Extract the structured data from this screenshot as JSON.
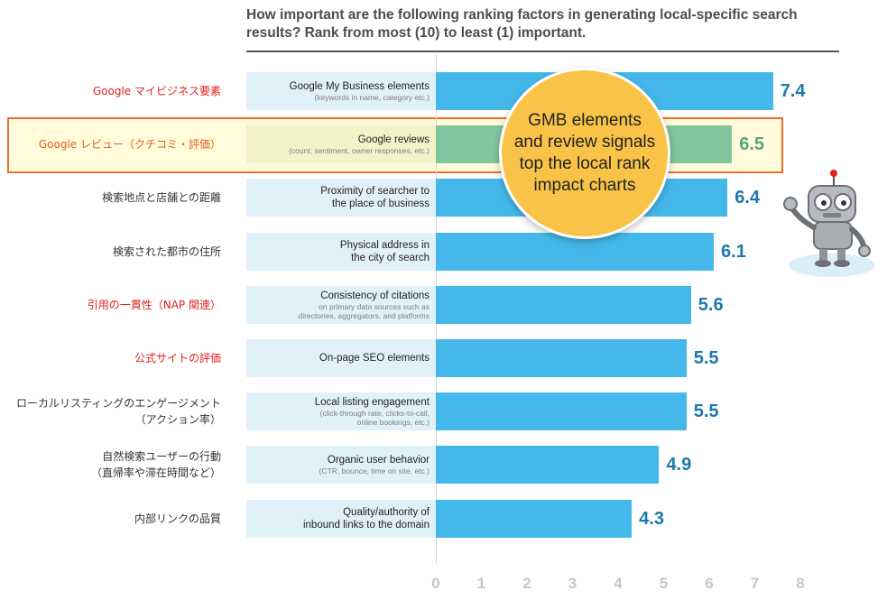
{
  "title": "How important are the following ranking factors in generating local-specific search results? Rank from most (10) to least (1) important.",
  "callout": "GMB elements and review signals top the local rank impact charts",
  "chart_data": {
    "type": "bar",
    "orientation": "horizontal",
    "title": "How important are the following ranking factors in generating local-specific search results? Rank from most (10) to least (1) important.",
    "xlim": [
      0,
      8
    ],
    "ticks": [
      "0",
      "1",
      "2",
      "3",
      "4",
      "5",
      "6",
      "7",
      "8"
    ],
    "grid": false,
    "highlighted_category": "Google reviews",
    "colors": {
      "bar": "#44b8ea",
      "highlight": "#7fc59d",
      "value": "#1d79ac",
      "highlight_value": "#58a47b",
      "highlight_frame": "#ee6f2b",
      "callout": "#f8c347"
    },
    "categories": [
      {
        "name": "Google My Business elements",
        "sub": "(keywords in name, category etc.)",
        "jp": "Google マイビジネス要素",
        "jp_color": "red",
        "value": 7.4,
        "label": "7.4"
      },
      {
        "name": "Google reviews",
        "sub": "(count, sentiment, owner responses, etc.)",
        "jp": "Google レビュー（クチコミ・評価）",
        "jp_color": "orange",
        "value": 6.5,
        "label": "6.5",
        "highlight": true
      },
      {
        "name": "Proximity of searcher to\nthe place of business",
        "sub": "",
        "jp": "検索地点と店舗との距離",
        "jp_color": "black",
        "value": 6.4,
        "label": "6.4"
      },
      {
        "name": "Physical address in\nthe city of search",
        "sub": "",
        "jp": "検索された都市の住所",
        "jp_color": "black",
        "value": 6.1,
        "label": "6.1"
      },
      {
        "name": "Consistency of citations",
        "sub": "on primary data sources such as\ndirectories, aggregators, and platforms",
        "jp": "引用の一貫性（NAP 関連）",
        "jp_color": "red",
        "value": 5.6,
        "label": "5.6"
      },
      {
        "name": "On-page SEO elements",
        "sub": "",
        "jp": "公式サイトの評価",
        "jp_color": "red",
        "value": 5.5,
        "label": "5.5"
      },
      {
        "name": "Local listing engagement",
        "sub": "(click-through rate, clicks-to-call,\nonline bookings, etc.)",
        "jp": "ローカルリスティングのエンゲージメント\n（アクション率）",
        "jp_color": "black",
        "value": 5.5,
        "label": "5.5"
      },
      {
        "name": "Organic user behavior",
        "sub": "(CTR, bounce, time on site, etc.)",
        "jp": "自然検索ユーザーの行動\n（直帰率や滞在時間など）",
        "jp_color": "black",
        "value": 4.9,
        "label": "4.9"
      },
      {
        "name": "Quality/authority of\ninbound links to the domain",
        "sub": "",
        "jp": "内部リンクの品質",
        "jp_color": "black",
        "value": 4.3,
        "label": "4.3"
      }
    ]
  },
  "mascot": {
    "icon": "robot-mascot-icon"
  }
}
